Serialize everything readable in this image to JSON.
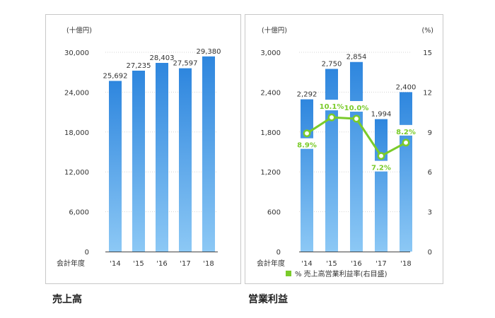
{
  "chart_data": [
    {
      "type": "bar",
      "title": "売上高",
      "unit_label": "(十億円)",
      "x_axis_label": "会計年度",
      "categories": [
        "'14",
        "'15",
        "'16",
        "'17",
        "'18"
      ],
      "values": [
        25692,
        27235,
        28403,
        27597,
        29380
      ],
      "value_labels": [
        "25,692",
        "27,235",
        "28,403",
        "27,597",
        "29,380"
      ],
      "ylim": [
        0,
        30000
      ],
      "yticks": [
        0,
        6000,
        12000,
        18000,
        24000,
        30000
      ],
      "ytick_labels": [
        "0",
        "6,000",
        "12,000",
        "18,000",
        "24,000",
        "30,000"
      ],
      "grid": true,
      "colors": {
        "bar_top": "#2e86de",
        "bar_bottom": "#8cc8f5"
      }
    },
    {
      "type": "bar",
      "title": "営業利益",
      "unit_label": "(十億円)",
      "right_unit_label": "(%)",
      "x_axis_label": "会計年度",
      "categories": [
        "'14",
        "'15",
        "'16",
        "'17",
        "'18"
      ],
      "values": [
        2292,
        2750,
        2854,
        1994,
        2400
      ],
      "value_labels": [
        "2,292",
        "2,750",
        "2,854",
        "1,994",
        "2,400"
      ],
      "ylim": [
        0,
        3000
      ],
      "yticks": [
        0,
        600,
        1200,
        1800,
        2400,
        3000
      ],
      "ytick_labels": [
        "0",
        "600",
        "1,200",
        "1,800",
        "2,400",
        "3,000"
      ],
      "y2lim": [
        0,
        15
      ],
      "y2ticks": [
        0,
        3,
        6,
        9,
        12,
        15
      ],
      "y2tick_labels": [
        "0",
        "3",
        "6",
        "9",
        "12",
        "15"
      ],
      "line_series": {
        "name": "% 売上高営業利益率(右目盛)",
        "values": [
          8.9,
          10.1,
          10.0,
          7.2,
          8.2
        ],
        "value_labels": [
          "8.9%",
          "10.1%",
          "10.0%",
          "7.2%",
          "8.2%"
        ]
      },
      "grid": true,
      "colors": {
        "bar_top": "#2e86de",
        "bar_bottom": "#8cc8f5",
        "line": "#7acb2a"
      }
    }
  ]
}
